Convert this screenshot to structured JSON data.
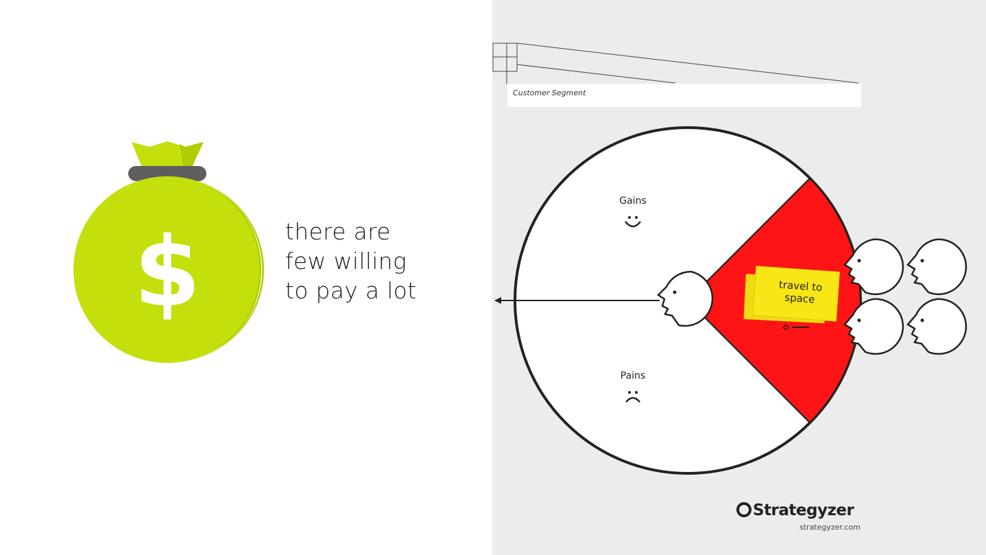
{
  "left_panel": {
    "icon": "money-bag-dollar-icon",
    "symbol": "$",
    "caption_lines": [
      "there are",
      "few willing",
      "to pay a lot"
    ],
    "colors": {
      "bag": "#c4df0c",
      "bag_shade": "#b1cb07",
      "band": "#5e5e5e"
    }
  },
  "canvas": {
    "segment_label": "Customer Segment",
    "gains_label": "Gains",
    "pains_label": "Pains",
    "sticky_note": "travel to space",
    "colors": {
      "jobs_section": "#fe1414",
      "sticky": "#f8e616",
      "background": "#ececec"
    }
  },
  "brand": {
    "name": "Strategyzer",
    "url": "strategyzer.com"
  }
}
